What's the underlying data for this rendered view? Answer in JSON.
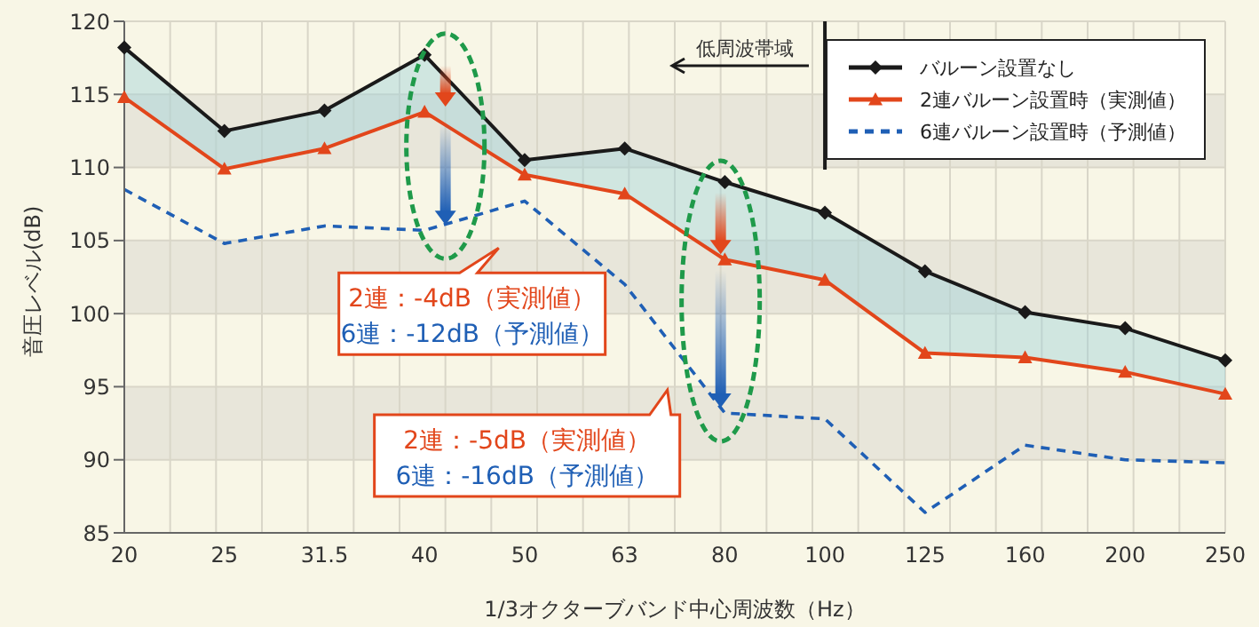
{
  "chart_data": {
    "type": "line",
    "xlabel": "1/3オクターブバンド中心周波数（Hz）",
    "ylabel": "音圧レベル(dB)",
    "categories": [
      "20",
      "25",
      "31.5",
      "40",
      "50",
      "63",
      "80",
      "100",
      "125",
      "160",
      "200",
      "250"
    ],
    "series": [
      {
        "name": "バルーン設置なし",
        "color": "#1a1a1a",
        "marker": "diamond",
        "line_style": "solid",
        "values": [
          118.2,
          112.5,
          113.9,
          117.7,
          110.5,
          111.3,
          109.0,
          106.9,
          102.9,
          100.1,
          99.0,
          96.8
        ],
        "lower": [
          114.8,
          109.9,
          111.3,
          113.8,
          109.5,
          108.2,
          103.7,
          102.3,
          97.3,
          97.0,
          96.0,
          94.5
        ],
        "upper": [
          118.2,
          112.5,
          113.9,
          117.7,
          110.5,
          111.3,
          109.0,
          106.9,
          102.9,
          100.1,
          99.0,
          96.8
        ]
      },
      {
        "name": "2連バルーン設置時（実測値）",
        "color": "#e2461b",
        "marker": "triangle",
        "line_style": "solid",
        "values": [
          114.8,
          109.9,
          111.3,
          113.8,
          109.5,
          108.2,
          103.7,
          102.3,
          97.3,
          97.0,
          96.0,
          94.5
        ]
      },
      {
        "name": "6連バルーン設置時（予測値）",
        "color": "#1f5fb5",
        "marker": "none",
        "line_style": "dashed",
        "values": [
          108.5,
          104.8,
          106.0,
          105.7,
          107.7,
          102.0,
          93.2,
          92.8,
          86.4,
          91.0,
          90.0,
          89.8
        ]
      }
    ],
    "ylim": [
      85,
      120
    ],
    "yticks": [
      85,
      90,
      95,
      100,
      105,
      110,
      115,
      120
    ],
    "grid": true,
    "legend": "top right",
    "ref_lines": [
      {
        "axis": "x",
        "value": "100",
        "label": "低周波帯域",
        "color": "#1a1a1a"
      }
    ],
    "annotations": [
      "2連：-4dB（実測値）",
      "6連：-12dB（予測値）",
      "2連：-5dB（実測値）",
      "6連：-16dB（予測値）"
    ]
  }
}
